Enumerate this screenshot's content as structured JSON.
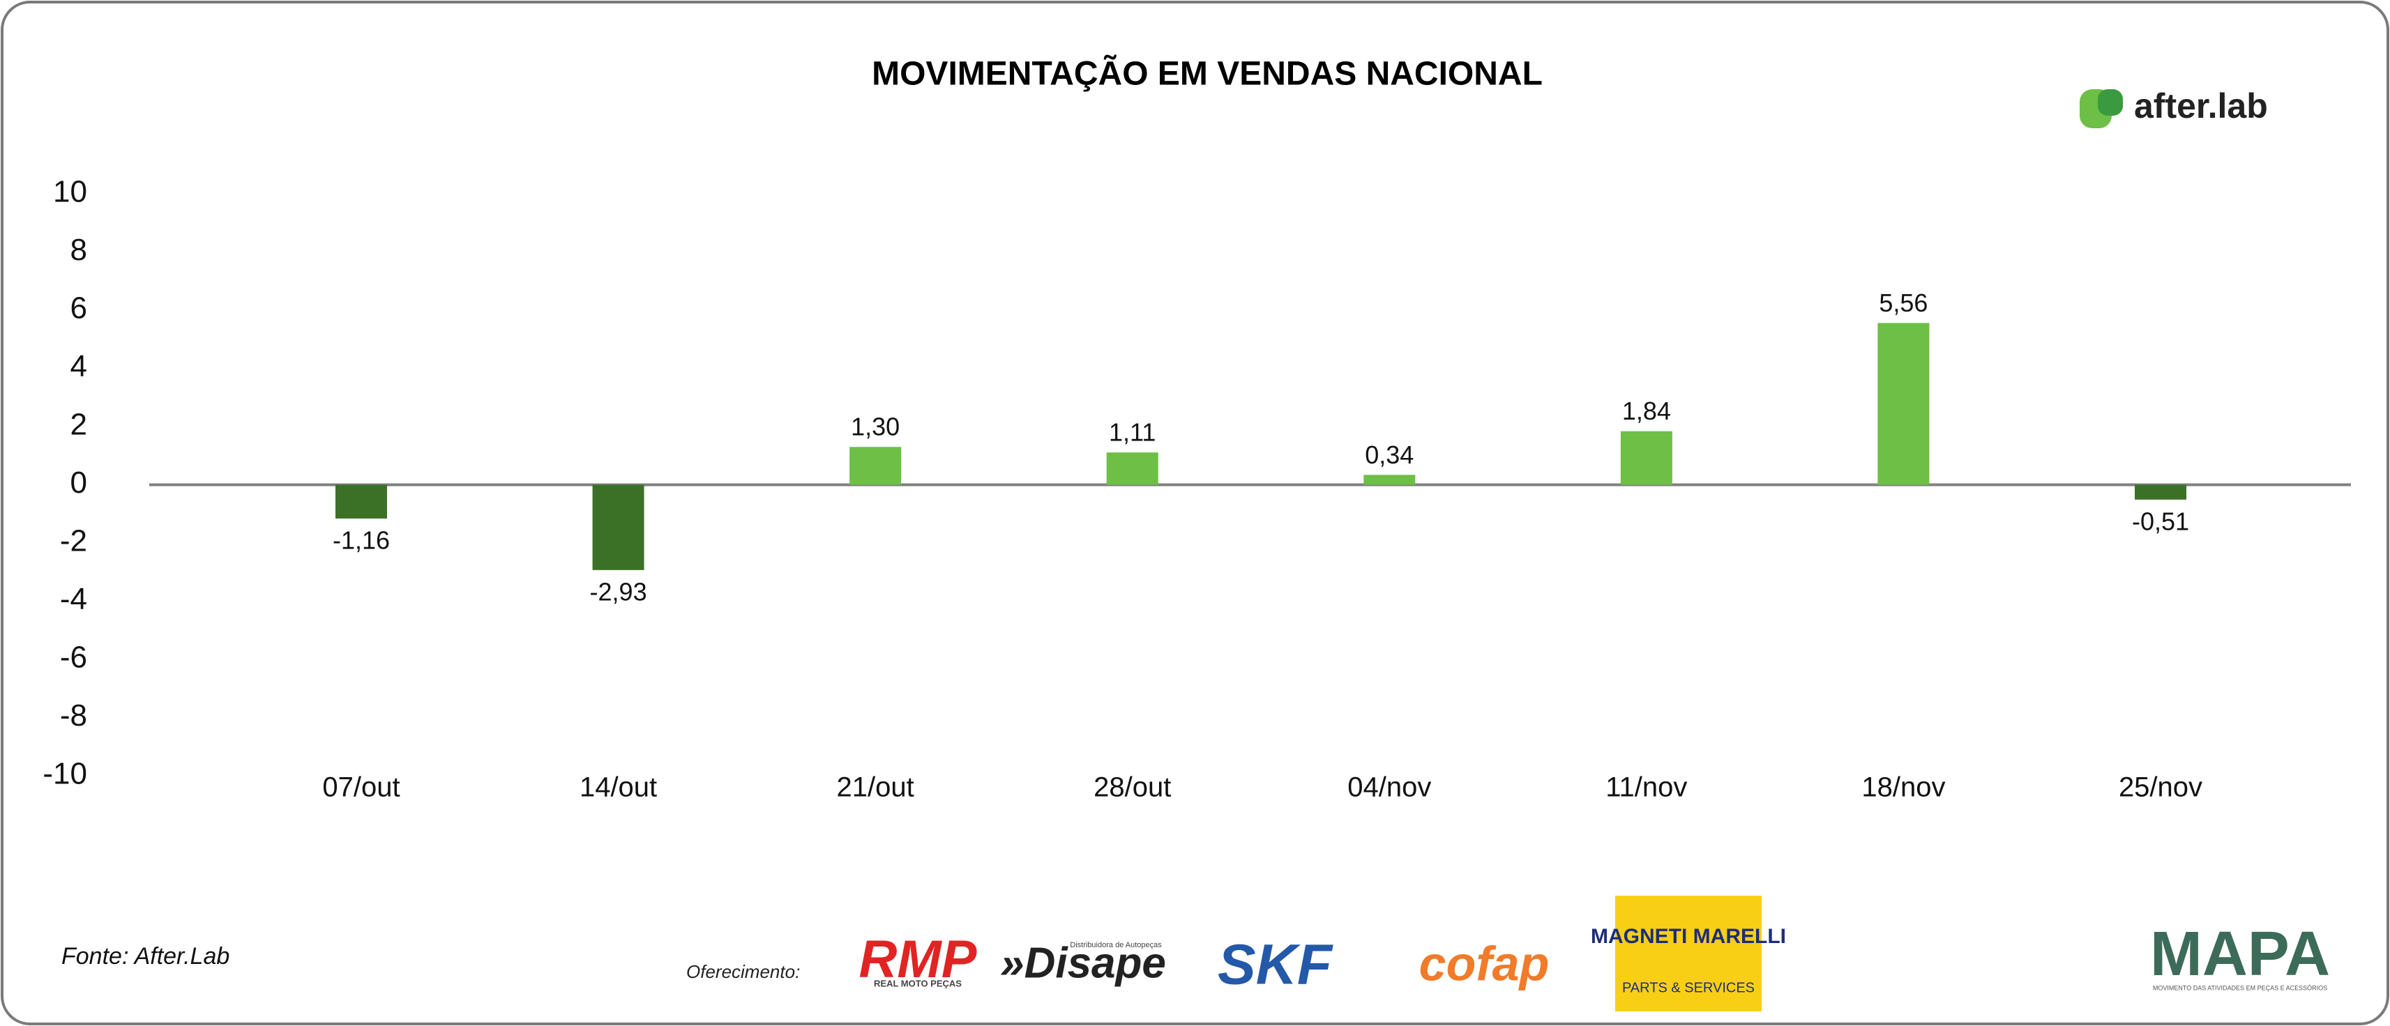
{
  "chart_data": {
    "type": "bar",
    "title": "MOVIMENTAÇÃO EM VENDAS NACIONAL",
    "categories": [
      "07/out",
      "14/out",
      "21/out",
      "28/out",
      "04/nov",
      "11/nov",
      "18/nov",
      "25/nov"
    ],
    "values": [
      -1.16,
      -2.93,
      1.3,
      1.11,
      0.34,
      1.84,
      5.56,
      -0.51
    ],
    "value_labels": [
      "-1,16",
      "-2,93",
      "1,30",
      "1,11",
      "0,34",
      "1,84",
      "5,56",
      "-0,51"
    ],
    "color": "#6dbf45",
    "negative_color": "#3b7127",
    "ylim": [
      -10,
      10
    ],
    "yticks": [
      -10,
      -8,
      -6,
      -4,
      -2,
      0,
      2,
      4,
      6,
      8,
      10
    ],
    "grid": false
  },
  "brand": "after.lab",
  "footer": {
    "source": "Fonte: After.Lab",
    "sponsor_label": "Oferecimento:",
    "sponsors": [
      "RMP",
      "REAL MOTO PEÇAS",
      "Distribuidora de Autopeças",
      "»Disape",
      "SKF",
      "cofap",
      "MAGNETI MARELLI",
      "PARTS & SERVICES",
      "MAPA",
      "MOVIMENTO DAS ATIVIDADES EM PEÇAS E ACESSÓRIOS"
    ]
  }
}
